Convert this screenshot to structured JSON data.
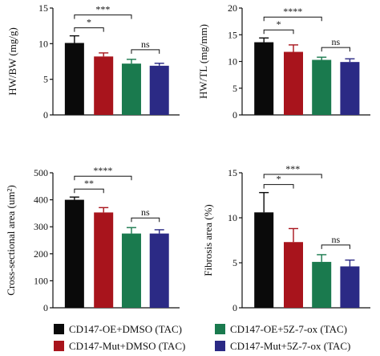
{
  "colors": {
    "CD147-OE+DMSO (TAC)": "#0a0a0a",
    "CD147-Mut+DMSO (TAC)": "#a8141c",
    "CD147-OE+5Z-7-ox (TAC)": "#1a7a4e",
    "CD147-Mut+5Z-7-ox (TAC)": "#2b2a85"
  },
  "legend": [
    {
      "label": "CD147-OE+DMSO (TAC)",
      "color": "#0a0a0a"
    },
    {
      "label": "CD147-OE+5Z-7-ox (TAC)",
      "color": "#1a7a4e"
    },
    {
      "label": "CD147-Mut+DMSO (TAC)",
      "color": "#a8141c"
    },
    {
      "label": "CD147-Mut+5Z-7-ox (TAC)",
      "color": "#2b2a85"
    }
  ],
  "chart_data": [
    {
      "type": "bar",
      "ylabel": "HW/BW (mg/g)",
      "ylim": [
        0,
        15
      ],
      "yticks": [
        0,
        5,
        10,
        15
      ],
      "categories": [
        "CD147-OE+DMSO (TAC)",
        "CD147-Mut+DMSO (TAC)",
        "CD147-OE+5Z-7-ox (TAC)",
        "CD147-Mut+5Z-7-ox (TAC)"
      ],
      "values": [
        10.1,
        8.2,
        7.2,
        6.9
      ],
      "errors": [
        1.0,
        0.5,
        0.6,
        0.35
      ],
      "significance": [
        {
          "from": 0,
          "to": 1,
          "label": "*"
        },
        {
          "from": 0,
          "to": 2,
          "label": "***"
        },
        {
          "from": 2,
          "to": 3,
          "label": "ns"
        }
      ]
    },
    {
      "type": "bar",
      "ylabel": "HW/TL (mg/mm)",
      "ylim": [
        0,
        20
      ],
      "yticks": [
        0,
        5,
        10,
        15,
        20
      ],
      "categories": [
        "CD147-OE+DMSO (TAC)",
        "CD147-Mut+DMSO (TAC)",
        "CD147-OE+5Z-7-ox (TAC)",
        "CD147-Mut+5Z-7-ox (TAC)"
      ],
      "values": [
        13.6,
        11.8,
        10.3,
        9.9
      ],
      "errors": [
        0.8,
        1.3,
        0.5,
        0.6
      ],
      "significance": [
        {
          "from": 0,
          "to": 1,
          "label": "*"
        },
        {
          "from": 0,
          "to": 2,
          "label": "****"
        },
        {
          "from": 2,
          "to": 3,
          "label": "ns"
        }
      ]
    },
    {
      "type": "bar",
      "ylabel": "Cross-sectional area (um²)",
      "ylim": [
        0,
        500
      ],
      "yticks": [
        0,
        100,
        200,
        300,
        400,
        500
      ],
      "categories": [
        "CD147-OE+DMSO (TAC)",
        "CD147-Mut+DMSO (TAC)",
        "CD147-OE+5Z-7-ox (TAC)",
        "CD147-Mut+5Z-7-ox (TAC)"
      ],
      "values": [
        400,
        353,
        275,
        275
      ],
      "errors": [
        10,
        18,
        22,
        14
      ],
      "significance": [
        {
          "from": 0,
          "to": 1,
          "label": "**"
        },
        {
          "from": 0,
          "to": 2,
          "label": "****"
        },
        {
          "from": 2,
          "to": 3,
          "label": "ns"
        }
      ]
    },
    {
      "type": "bar",
      "ylabel": "Fibrosis area (%)",
      "ylim": [
        0,
        15
      ],
      "yticks": [
        0,
        5,
        10,
        15
      ],
      "categories": [
        "CD147-OE+DMSO (TAC)",
        "CD147-Mut+DMSO (TAC)",
        "CD147-OE+5Z-7-ox (TAC)",
        "CD147-Mut+5Z-7-ox (TAC)"
      ],
      "values": [
        10.6,
        7.3,
        5.1,
        4.6
      ],
      "errors": [
        2.2,
        1.5,
        0.8,
        0.7
      ],
      "significance": [
        {
          "from": 0,
          "to": 1,
          "label": "*"
        },
        {
          "from": 0,
          "to": 2,
          "label": "***"
        },
        {
          "from": 2,
          "to": 3,
          "label": "ns"
        }
      ]
    }
  ]
}
